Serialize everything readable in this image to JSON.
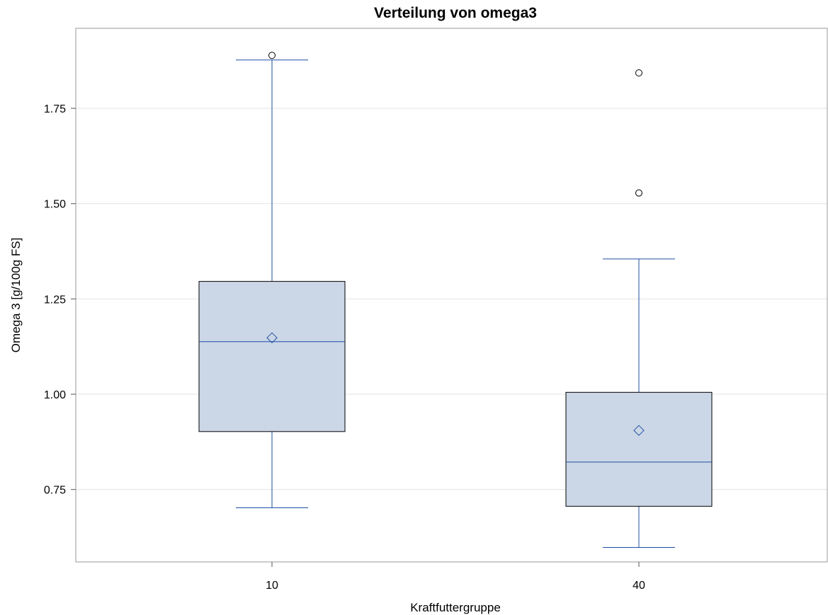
{
  "chart_data": {
    "type": "box",
    "title": "Verteilung von omega3",
    "xlabel": "Kraftfuttergruppe",
    "ylabel": "Omega 3 [g/100g FS]",
    "categories": [
      "10",
      "40"
    ],
    "ylim": [
      0.56,
      1.96
    ],
    "yticks": [
      0.75,
      1.0,
      1.25,
      1.5,
      1.75
    ],
    "ytick_labels": [
      "0.75",
      "1.00",
      "1.25",
      "1.50",
      "1.75"
    ],
    "grid": true,
    "boxes": [
      {
        "category": "10",
        "whisker_low": 0.702,
        "q1": 0.902,
        "median": 1.138,
        "q3": 1.296,
        "whisker_high": 1.877,
        "mean": 1.148,
        "outliers": [
          1.889
        ]
      },
      {
        "category": "40",
        "whisker_low": 0.598,
        "q1": 0.706,
        "median": 0.822,
        "q3": 1.005,
        "whisker_high": 1.355,
        "mean": 0.905,
        "outliers": [
          1.528,
          1.843
        ]
      }
    ],
    "colors": {
      "box_fill": "#cbd7e6",
      "box_edge": "#000000",
      "whisker": "#1f4fa3",
      "median": "#1f4fa3",
      "mean_marker": "#1f4fa3",
      "outlier": "#000000",
      "grid": "#e3e3e3",
      "frame": "#999999"
    }
  }
}
